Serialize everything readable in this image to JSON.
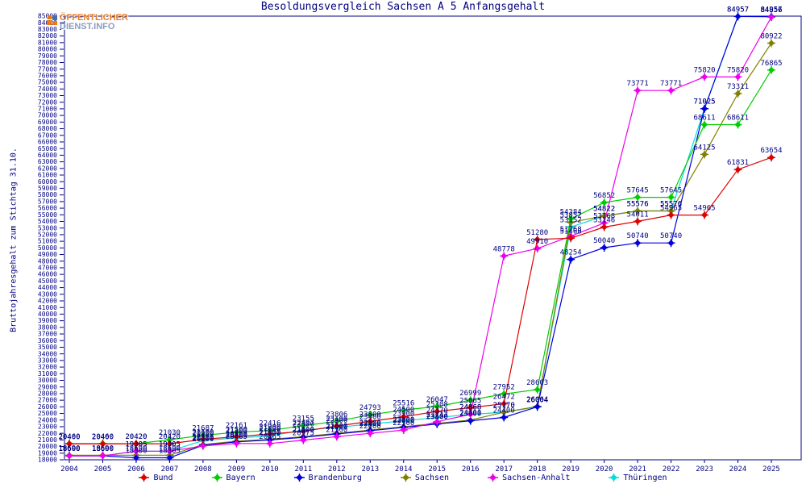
{
  "title": "Besoldungsvergleich Sachsen A 5 Anfangsgehalt",
  "logo": {
    "line1": "ÖFFENTLICHER",
    "line2": "DIENST.INFO"
  },
  "y_axis": {
    "label": "Bruttojahresgehalt zum Stichtag 31.10.",
    "min": 18000,
    "max": 85000,
    "step": 1000
  },
  "x_axis": {
    "years": [
      2004,
      2005,
      2006,
      2007,
      2008,
      2009,
      2010,
      2011,
      2012,
      2013,
      2014,
      2015,
      2016,
      2017,
      2018,
      2019,
      2020,
      2021,
      2022,
      2023,
      2024,
      2025
    ]
  },
  "colors": {
    "axis": "#000080",
    "text": "#000080",
    "bund": "#dd0000",
    "bayern": "#00cc00",
    "brandenburg": "#0000dd",
    "sachsen": "#808000",
    "sachsen_anhalt": "#ee00ee",
    "thueringen": "#00dddd",
    "logo_orange": "#e87a1e",
    "logo_gray": "#8c9cc0"
  },
  "chart_data": {
    "type": "line",
    "title": "Besoldungsvergleich Sachsen A 5 Anfangsgehalt",
    "ylabel": "Bruttojahresgehalt zum Stichtag 31.10.",
    "xlabel": "",
    "ylim": [
      18000,
      85000
    ],
    "grid": false,
    "legend_position": "bottom",
    "x": [
      2004,
      2005,
      2006,
      2007,
      2008,
      2009,
      2010,
      2011,
      2012,
      2013,
      2014,
      2015,
      2016,
      2017,
      2018,
      2019,
      2020,
      2021,
      2022,
      2023,
      2024,
      2025
    ],
    "series": [
      {
        "name": "Thüringen",
        "color_key": "thueringen",
        "values": [
          18600,
          18600,
          19305,
          19305,
          20900,
          21300,
          21600,
          22497,
          22900,
          23400,
          23900,
          24370,
          24868,
          25170,
          26004,
          53152,
          54822,
          55576,
          55576,
          71025,
          84957,
          84856
        ]
      },
      {
        "name": "Sachsen",
        "color_key": "sachsen",
        "values": [
          18690,
          18690,
          18690,
          18690,
          20300,
          20800,
          21100,
          21500,
          22000,
          22500,
          23000,
          23500,
          24000,
          25170,
          26064,
          53852,
          54822,
          55576,
          55576,
          64125,
          73311,
          80922
        ]
      },
      {
        "name": "Brandenburg",
        "color_key": "brandenburg",
        "values": [
          18600,
          18600,
          18300,
          18305,
          20200,
          20700,
          21000,
          21400,
          21900,
          22400,
          22900,
          23400,
          23900,
          24400,
          26004,
          48254,
          50040,
          50740,
          50740,
          71025,
          84957,
          84957
        ]
      },
      {
        "name": "Bayern",
        "color_key": "bayern",
        "values": [
          20460,
          20460,
          20420,
          21030,
          21687,
          22161,
          22416,
          23155,
          23806,
          24793,
          25516,
          26047,
          26999,
          27952,
          28603,
          54384,
          56852,
          57645,
          57645,
          68611,
          68611,
          76865
        ]
      },
      {
        "name": "Sachsen-Anhalt",
        "color_key": "sachsen_anhalt",
        "values": [
          18600,
          18600,
          19305,
          19305,
          20100,
          20465,
          20465,
          20975,
          21500,
          22000,
          22500,
          23747,
          24868,
          48778,
          49910,
          51768,
          53768,
          73771,
          73771,
          75820,
          75820,
          84856
        ]
      },
      {
        "name": "Bund",
        "color_key": "bund",
        "values": [
          20400,
          20400,
          20420,
          20420,
          21100,
          21500,
          21900,
          22300,
          23100,
          23800,
          24500,
          25308,
          25865,
          26472,
          51280,
          51468,
          53146,
          54011,
          54965,
          54965,
          61831,
          63654
        ]
      }
    ]
  },
  "legend": [
    {
      "label": "Bund",
      "color_key": "bund"
    },
    {
      "label": "Bayern",
      "color_key": "bayern"
    },
    {
      "label": "Brandenburg",
      "color_key": "brandenburg"
    },
    {
      "label": "Sachsen",
      "color_key": "sachsen"
    },
    {
      "label": "Sachsen-Anhalt",
      "color_key": "sachsen_anhalt"
    },
    {
      "label": "Thüringen",
      "color_key": "thueringen"
    }
  ]
}
